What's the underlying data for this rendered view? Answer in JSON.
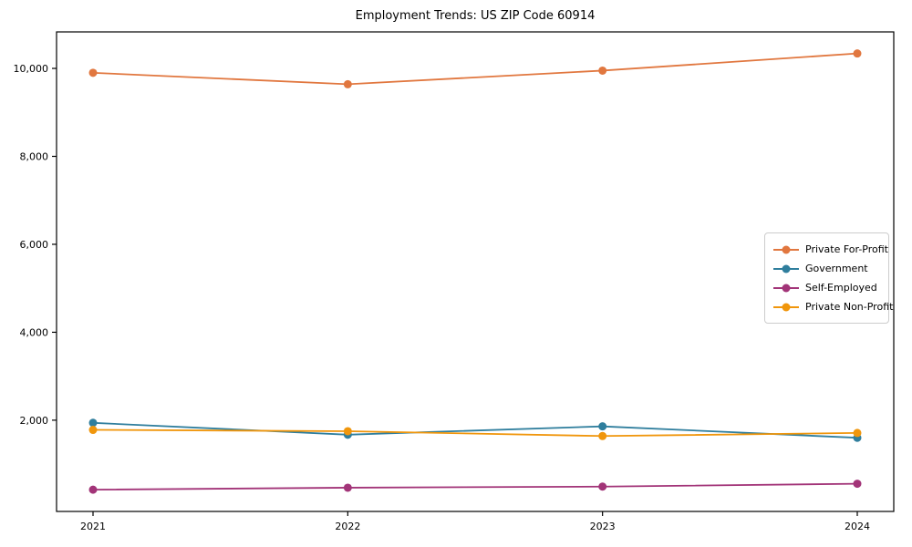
{
  "chart_data": {
    "type": "line",
    "title": "Employment Trends: US ZIP Code 60914",
    "xlabel": "",
    "ylabel": "",
    "categories": [
      "2021",
      "2022",
      "2023",
      "2024"
    ],
    "series": [
      {
        "name": "Private For-Profit",
        "color": "#e1773f",
        "values": [
          9900,
          9640,
          9950,
          10340
        ]
      },
      {
        "name": "Government",
        "color": "#2f7e9d",
        "values": [
          1940,
          1670,
          1860,
          1600
        ]
      },
      {
        "name": "Self-Employed",
        "color": "#a23478",
        "values": [
          420,
          465,
          490,
          555
        ]
      },
      {
        "name": "Private Non-Profit",
        "color": "#f0960c",
        "values": [
          1780,
          1750,
          1640,
          1710
        ]
      }
    ],
    "yticks": {
      "values": [
        2000,
        4000,
        6000,
        8000,
        10000
      ],
      "labels": [
        "2,000",
        "4,000",
        "6,000",
        "8,000",
        "10,000"
      ]
    },
    "ylim": [
      -75,
      10830
    ],
    "grid": false,
    "legend_position": "center right",
    "marker": "circle",
    "frame_color": "#000000",
    "background": "#ffffff"
  }
}
